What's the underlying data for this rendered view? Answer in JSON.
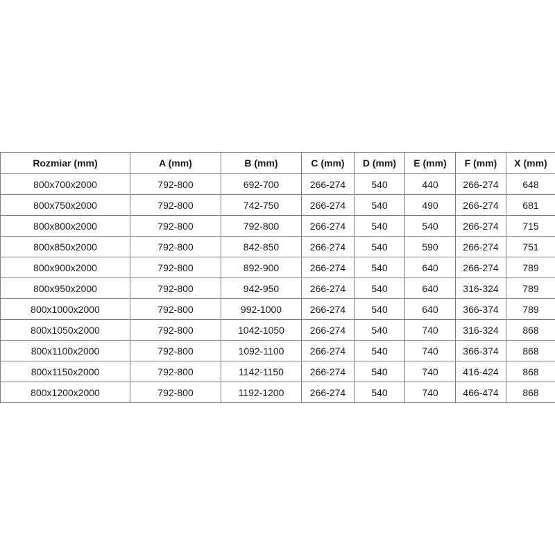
{
  "style": {
    "border_color": "#7d7d7d",
    "text_color": "#1a1a1a",
    "background_color": "#ffffff"
  },
  "chart_data": {
    "type": "table",
    "title": "",
    "columns": [
      "Rozmiar (mm)",
      "A (mm)",
      "B (mm)",
      "C (mm)",
      "D (mm)",
      "E (mm)",
      "F (mm)",
      "X (mm)"
    ],
    "rows": [
      [
        "800x700x2000",
        "792-800",
        "692-700",
        "266-274",
        "540",
        "440",
        "266-274",
        "648"
      ],
      [
        "800x750x2000",
        "792-800",
        "742-750",
        "266-274",
        "540",
        "490",
        "266-274",
        "681"
      ],
      [
        "800x800x2000",
        "792-800",
        "792-800",
        "266-274",
        "540",
        "540",
        "266-274",
        "715"
      ],
      [
        "800x850x2000",
        "792-800",
        "842-850",
        "266-274",
        "540",
        "590",
        "266-274",
        "751"
      ],
      [
        "800x900x2000",
        "792-800",
        "892-900",
        "266-274",
        "540",
        "640",
        "266-274",
        "789"
      ],
      [
        "800x950x2000",
        "792-800",
        "942-950",
        "266-274",
        "540",
        "640",
        "316-324",
        "789"
      ],
      [
        "800x1000x2000",
        "792-800",
        "992-1000",
        "266-274",
        "540",
        "640",
        "366-374",
        "789"
      ],
      [
        "800x1050x2000",
        "792-800",
        "1042-1050",
        "266-274",
        "540",
        "740",
        "316-324",
        "868"
      ],
      [
        "800x1100x2000",
        "792-800",
        "1092-1100",
        "266-274",
        "540",
        "740",
        "366-374",
        "868"
      ],
      [
        "800x1150x2000",
        "792-800",
        "1142-1150",
        "266-274",
        "540",
        "740",
        "416-424",
        "868"
      ],
      [
        "800x1200x2000",
        "792-800",
        "1192-1200",
        "266-274",
        "540",
        "740",
        "466-474",
        "868"
      ]
    ]
  }
}
